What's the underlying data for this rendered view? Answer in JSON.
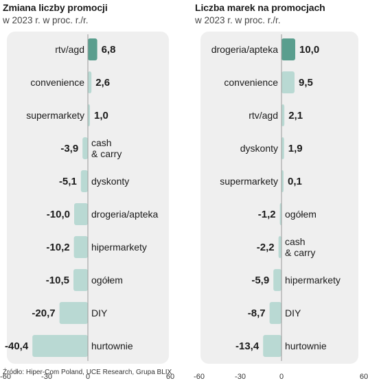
{
  "source": "Źródło: Hiper-Com Poland, UCE Research, Grupa BLIX",
  "colors": {
    "panel_bg": "#efefef",
    "bar": "#b9d9d3",
    "bar_highlight": "#5a9e8e",
    "text": "#1a1a1a"
  },
  "chart_data": [
    {
      "type": "bar",
      "orientation": "horizontal",
      "title": "Zmiana liczby promocji",
      "subtitle": "w 2023 r. w proc. r./r.",
      "categories": [
        "rtv/agd",
        "convenience",
        "supermarkety",
        "cash & carry",
        "dyskonty",
        "drogeria/apteka",
        "hipermarkety",
        "ogółem",
        "DIY",
        "hurtownie"
      ],
      "values": [
        6.8,
        2.6,
        1.0,
        -3.9,
        -5.1,
        -10.0,
        -10.2,
        -10.5,
        -20.7,
        -40.4
      ],
      "value_labels": [
        "6,8",
        "2,6",
        "1,0",
        "-3,9",
        "-5,1",
        "-10,0",
        "-10,2",
        "-10,5",
        "-20,7",
        "-40,4"
      ],
      "highlight_index": 0,
      "xlim": [
        -60,
        60
      ],
      "xticks": [
        "-60",
        "-30",
        "0",
        "60"
      ]
    },
    {
      "type": "bar",
      "orientation": "horizontal",
      "title": "Liczba marek na promocjach",
      "subtitle": "w 2023 r. w proc. r./r.",
      "categories": [
        "drogeria/apteka",
        "convenience",
        "rtv/agd",
        "dyskonty",
        "supermarkety",
        "ogółem",
        "cash & carry",
        "hipermarkety",
        "DIY",
        "hurtownie"
      ],
      "values": [
        10.0,
        9.5,
        2.1,
        1.9,
        0.1,
        -1.2,
        -2.2,
        -5.9,
        -8.7,
        -13.4
      ],
      "value_labels": [
        "10,0",
        "9,5",
        "2,1",
        "1,9",
        "0,1",
        "-1,2",
        "-2,2",
        "-5,9",
        "-8,7",
        "-13,4"
      ],
      "highlight_index": 0,
      "xlim": [
        -60,
        60
      ],
      "xticks": [
        "-60",
        "-30",
        "0",
        "60"
      ]
    }
  ]
}
